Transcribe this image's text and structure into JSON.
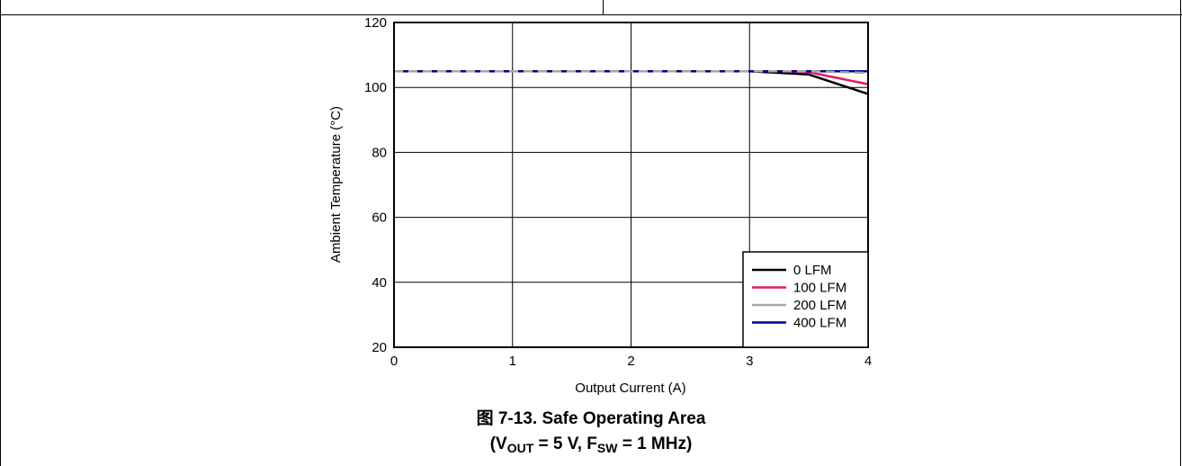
{
  "caption": {
    "figure_label": "图 7-13. Safe Operating Area",
    "condition_open": "(V",
    "vout_sub": "OUT",
    "condition_mid": " = 5 V, F",
    "fsw_sub": "SW",
    "condition_close": " = 1 MHz)"
  },
  "chart_data": {
    "type": "line",
    "title": "",
    "xlabel": "Output Current (A)",
    "ylabel": "Ambient Temperature (°C)",
    "xlim": [
      0,
      4
    ],
    "ylim": [
      20,
      120
    ],
    "xticks": [
      0,
      1,
      2,
      3,
      4
    ],
    "yticks": [
      20,
      40,
      60,
      80,
      100,
      120
    ],
    "grid": true,
    "legend_position": "bottom-right",
    "series": [
      {
        "name": "0 LFM",
        "color": "#000000",
        "dash": false,
        "x": [
          0,
          3.0,
          3.5,
          4.0
        ],
        "y": [
          105,
          105,
          104,
          98
        ]
      },
      {
        "name": "100 LFM",
        "color": "#e8175d",
        "dash": false,
        "x": [
          0,
          3.3,
          3.5,
          4.0
        ],
        "y": [
          105,
          105,
          104.7,
          101
        ]
      },
      {
        "name": "200 LFM",
        "color": "#a6a6a6",
        "dash": true,
        "x": [
          0,
          3.5,
          4.0
        ],
        "y": [
          105,
          105,
          104.5
        ]
      },
      {
        "name": "400 LFM",
        "color": "#00008b",
        "dash": false,
        "x": [
          0,
          4.0
        ],
        "y": [
          105,
          105
        ]
      }
    ]
  }
}
